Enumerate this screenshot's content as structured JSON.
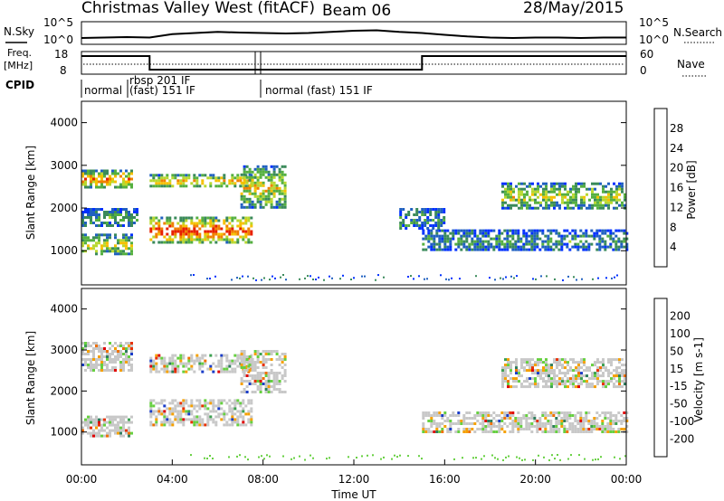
{
  "header": {
    "station": "Christmas Valley West (fitACF)",
    "beam": "Beam 06",
    "date": "28/May/2015"
  },
  "chart_data": [
    {
      "type": "line",
      "panel": "noise",
      "left_label": "N.Sky",
      "right_label": "N.Search",
      "left_ticks": [
        "10^5",
        "10^0"
      ],
      "right_ticks": [
        "10^5",
        "10^0"
      ],
      "x": [
        0,
        1,
        2,
        3,
        4,
        5,
        6,
        7,
        8,
        9,
        10,
        11,
        12,
        13,
        14,
        15,
        16,
        17,
        18,
        19,
        20,
        21,
        22,
        23,
        24
      ],
      "series": [
        {
          "values": [
            0.28,
            0.3,
            0.32,
            0.3,
            0.45,
            0.5,
            0.55,
            0.52,
            0.5,
            0.48,
            0.5,
            0.55,
            0.6,
            0.62,
            0.55,
            0.5,
            0.42,
            0.35,
            0.3,
            0.28,
            0.3,
            0.3,
            0.28,
            0.3,
            0.3
          ]
        }
      ]
    },
    {
      "type": "line",
      "panel": "frequency",
      "left_label_top": "Freq.",
      "left_label_bottom": "[MHz]",
      "left_ticks": [
        "18",
        "8"
      ],
      "right_label": "Nave",
      "right_ticks": [
        "60",
        "0"
      ],
      "x": [
        0,
        3,
        3,
        15,
        15,
        24
      ],
      "series": [
        {
          "values": [
            0.8,
            0.8,
            0.2,
            0.2,
            0.8,
            0.8
          ]
        }
      ]
    },
    {
      "type": "table",
      "panel": "cpid",
      "label": "CPID",
      "segments": [
        {
          "start": 0,
          "end": 2.1,
          "label": "normal"
        },
        {
          "start": 2.1,
          "end": 7.8,
          "label": "rbsp 201 IF",
          "label2": "(fast) 151 IF"
        },
        {
          "start": 7.8,
          "end": 24,
          "label": "normal (fast) 151 IF"
        }
      ]
    },
    {
      "type": "heatmap",
      "panel": "power",
      "ylabel": "Slant Range [km]",
      "yticks": [
        "1000",
        "2000",
        "3000",
        "4000"
      ],
      "ylim": [
        200,
        4500
      ],
      "xlim": [
        0,
        24
      ],
      "colorbar_label": "Power [dB]",
      "colorbar_ticks": [
        "4",
        "8",
        "12",
        "16",
        "20",
        "24",
        "28"
      ],
      "colors": [
        "#0030ff",
        "#2060c0",
        "#3a8a5a",
        "#55b040",
        "#b8d830",
        "#f5c000",
        "#f08000",
        "#e82000"
      ],
      "bands": [
        {
          "t0": 0,
          "t1": 2.2,
          "r0": 2500,
          "r1": 2900,
          "intensity": 0.75
        },
        {
          "t0": 0,
          "t1": 2.2,
          "r0": 900,
          "r1": 1400,
          "intensity": 0.55
        },
        {
          "t0": 0,
          "t1": 2.5,
          "r0": 1600,
          "r1": 2000,
          "intensity": 0.35
        },
        {
          "t0": 3,
          "t1": 7.5,
          "r0": 1200,
          "r1": 1800,
          "intensity": 0.9
        },
        {
          "t0": 3,
          "t1": 7.5,
          "r0": 2500,
          "r1": 2800,
          "intensity": 0.7
        },
        {
          "t0": 7,
          "t1": 9,
          "r0": 2000,
          "r1": 3000,
          "intensity": 0.6
        },
        {
          "t0": 14,
          "t1": 16,
          "r0": 1500,
          "r1": 2000,
          "intensity": 0.3
        },
        {
          "t0": 15,
          "t1": 24,
          "r0": 1000,
          "r1": 1500,
          "intensity": 0.3
        },
        {
          "t0": 18.5,
          "t1": 24,
          "r0": 2000,
          "r1": 2600,
          "intensity": 0.55
        }
      ]
    },
    {
      "type": "heatmap",
      "panel": "velocity",
      "ylabel": "Slant Range [km]",
      "yticks": [
        "1000",
        "2000",
        "3000",
        "4000"
      ],
      "ylim": [
        200,
        4500
      ],
      "xlim": [
        0,
        24
      ],
      "xticks": [
        "00:00",
        "04:00",
        "08:00",
        "12:00",
        "16:00",
        "20:00",
        "00:00"
      ],
      "xlabel": "Time UT",
      "colorbar_label": "Velocity [m s-1]",
      "colorbar_ticks": [
        "200",
        "100",
        "50",
        "15",
        "-15",
        "-50",
        "-100",
        "-200"
      ],
      "colors": [
        "#1a3cc8",
        "#2e7d5c",
        "#3ca050",
        "#66d040",
        "#c8c8c8",
        "#f5a000",
        "#f07000",
        "#e83000",
        "#e00000"
      ],
      "bands": [
        {
          "t0": 0,
          "t1": 2.2,
          "r0": 2500,
          "r1": 3200,
          "intensity": 0.5
        },
        {
          "t0": 0,
          "t1": 2.2,
          "r0": 900,
          "r1": 1400,
          "intensity": 0.5
        },
        {
          "t0": 3,
          "t1": 7.5,
          "r0": 1200,
          "r1": 1800,
          "intensity": 0.5
        },
        {
          "t0": 3,
          "t1": 7.5,
          "r0": 2500,
          "r1": 2900,
          "intensity": 0.5
        },
        {
          "t0": 7,
          "t1": 9,
          "r0": 2000,
          "r1": 3000,
          "intensity": 0.5
        },
        {
          "t0": 15,
          "t1": 24,
          "r0": 1000,
          "r1": 1500,
          "intensity": 0.5
        },
        {
          "t0": 18.5,
          "t1": 24,
          "r0": 2100,
          "r1": 2800,
          "intensity": 0.5
        }
      ]
    }
  ]
}
